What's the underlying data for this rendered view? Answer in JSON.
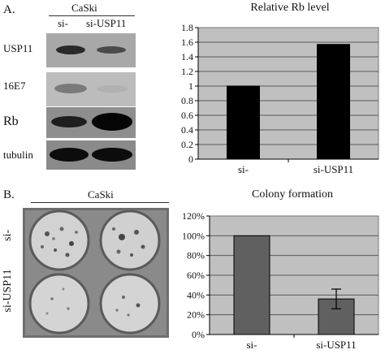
{
  "panel_a": {
    "letter": "A.",
    "cell_line": "CaSki",
    "lanes": [
      "si-",
      "si-USP11"
    ],
    "blot_rows": [
      "USP11",
      "16E7",
      "Rb",
      "tubulin"
    ]
  },
  "panel_b": {
    "letter": "B.",
    "cell_line": "CaSki",
    "row_labels": [
      "si-",
      "si-USP11"
    ]
  },
  "chart_data": [
    {
      "type": "bar",
      "title": "Relative Rb level",
      "categories": [
        "si-",
        "si-USP11"
      ],
      "values": [
        1.0,
        1.57
      ],
      "yticks": [
        "0",
        "0.2",
        "0.4",
        "0.6",
        "0.8",
        "1",
        "1.2",
        "1.4",
        "1.6",
        "1.8"
      ],
      "ylim": [
        0,
        1.8
      ],
      "grid": true,
      "bar_color": "#000000",
      "plot_bg": "#c0c0c0"
    },
    {
      "type": "bar",
      "title": "Colony formation",
      "categories": [
        "si-",
        "si-USP11"
      ],
      "values": [
        100,
        36
      ],
      "errors": [
        0,
        10
      ],
      "yticks": [
        "0%",
        "20%",
        "40%",
        "60%",
        "80%",
        "100%",
        "120%"
      ],
      "ylim": [
        0,
        120
      ],
      "grid": true,
      "bar_color": "#606060",
      "plot_bg": "#c0c0c0"
    }
  ]
}
